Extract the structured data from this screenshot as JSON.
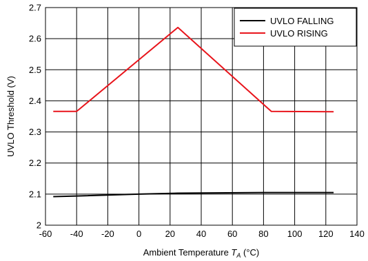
{
  "chart_data": {
    "type": "line",
    "xlabel": {
      "prefix": "Ambient Temperature ",
      "symbol": "T",
      "subscript": "A",
      "suffix": " (°C)"
    },
    "ylabel": "UVLO Threshold (V)",
    "xlim": [
      -60,
      140
    ],
    "ylim": [
      2.0,
      2.7
    ],
    "x_ticks": [
      -60,
      -40,
      -20,
      0,
      20,
      40,
      60,
      80,
      100,
      120,
      140
    ],
    "y_ticks": [
      2.0,
      2.1,
      2.2,
      2.3,
      2.4,
      2.5,
      2.6,
      2.7
    ],
    "x_tick_labels": [
      "-60",
      "-40",
      "-20",
      "0",
      "20",
      "40",
      "60",
      "80",
      "100",
      "120",
      "140"
    ],
    "y_tick_labels": [
      "2",
      "2.1",
      "2.2",
      "2.3",
      "2.4",
      "2.5",
      "2.6",
      "2.7"
    ],
    "grid": true,
    "legend_position": "top-right",
    "series": [
      {
        "name": "UVLO FALLING",
        "color": "#000000",
        "x": [
          -55,
          -40,
          0,
          25,
          85,
          125
        ],
        "y": [
          2.092,
          2.094,
          2.1,
          2.103,
          2.105,
          2.105
        ]
      },
      {
        "name": "UVLO RISING",
        "color": "#e8141b",
        "x": [
          -55,
          -40,
          25,
          85,
          125
        ],
        "y": [
          2.366,
          2.366,
          2.636,
          2.366,
          2.365
        ]
      }
    ]
  }
}
